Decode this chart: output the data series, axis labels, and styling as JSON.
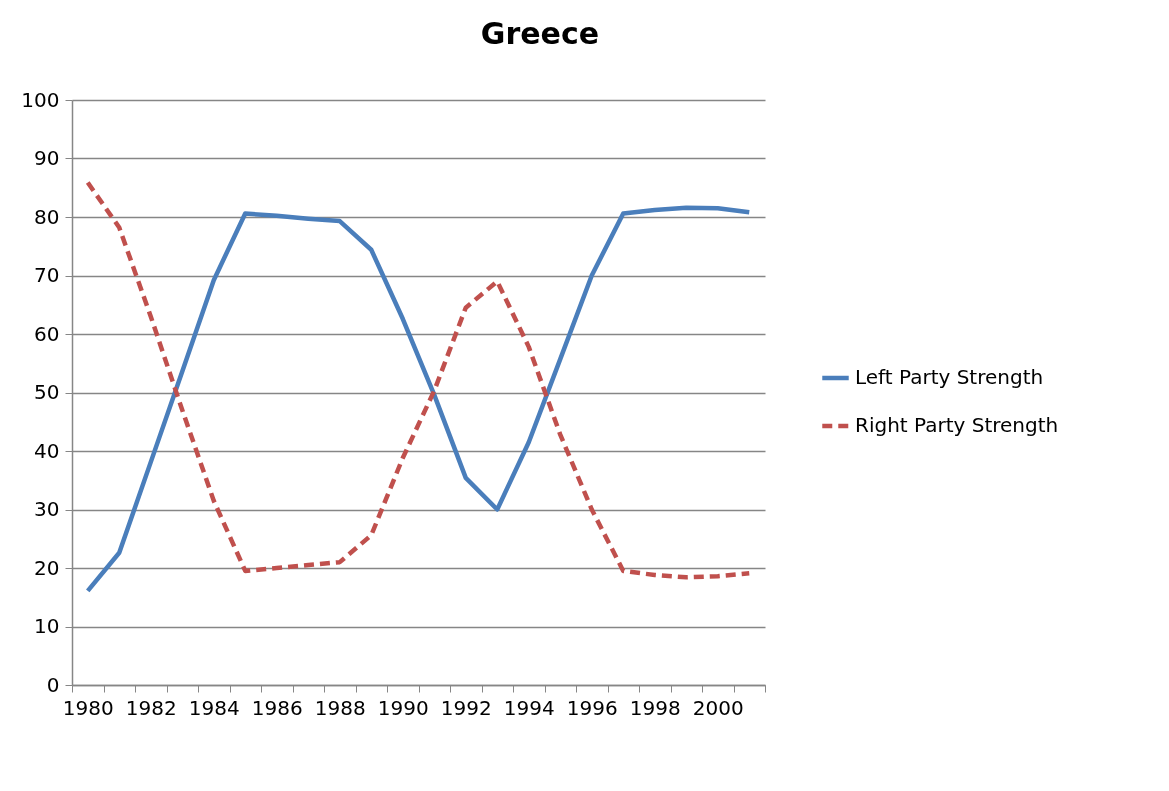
{
  "chart_data": {
    "type": "line",
    "title": "Greece",
    "categories": [
      "1980",
      null,
      "1982",
      null,
      "1984",
      null,
      "1986",
      null,
      "1988",
      null,
      "1990",
      null,
      "1992",
      null,
      "1994",
      null,
      "1996",
      null,
      "1998",
      null,
      "2000",
      null
    ],
    "series": [
      {
        "name": "Left Party Strength",
        "color": "#4a7ebb",
        "line_style": "solid",
        "values": [
          16.1,
          22.6,
          38.1,
          53.6,
          69.2,
          80.6,
          80.2,
          79.7,
          79.3,
          74.4,
          62.6,
          49.6,
          35.4,
          30,
          41.5,
          55.7,
          70,
          80.6,
          81.2,
          81.6,
          81.5,
          80.8
        ]
      },
      {
        "name": "Right Party Strength",
        "color": "#c0504d",
        "line_style": "dashed",
        "values": [
          85.9,
          78.2,
          63,
          47,
          31.5,
          19.5,
          20,
          20.5,
          21,
          25.6,
          38.8,
          50.3,
          64.5,
          69,
          57.8,
          42.8,
          30,
          19.5,
          18.8,
          18.4,
          18.6,
          19.1
        ]
      }
    ],
    "ylim": [
      0,
      100
    ],
    "yticks": [
      0,
      10,
      20,
      30,
      40,
      50,
      60,
      70,
      80,
      90,
      100
    ],
    "grid": "y",
    "legend": "right"
  }
}
